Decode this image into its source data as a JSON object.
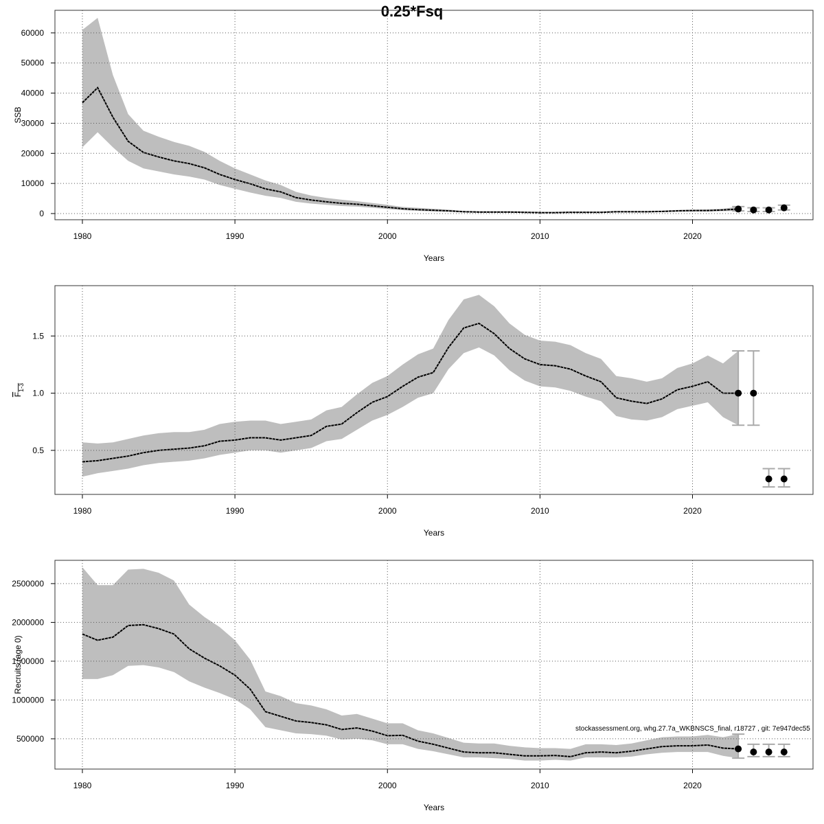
{
  "title": "0.25*Fsq",
  "footnote": "stockassessment.org, whg.27.7a_WKBNSCS_final, r18727 , git: 7e947dec55",
  "chart_data": [
    {
      "type": "line",
      "xlabel": "Years",
      "ylabel": "SSB",
      "xlim": [
        1978.2,
        2027.9
      ],
      "xticks": [
        1980,
        1990,
        2000,
        2010,
        2020
      ],
      "ylim": [
        -2050,
        67500
      ],
      "yticks": [
        0,
        10000,
        20000,
        30000,
        40000,
        50000,
        60000
      ],
      "grid": true,
      "x": [
        1980,
        1981,
        1982,
        1983,
        1984,
        1985,
        1986,
        1987,
        1988,
        1989,
        1990,
        1991,
        1992,
        1993,
        1994,
        1995,
        1996,
        1997,
        1998,
        1999,
        2000,
        2001,
        2002,
        2003,
        2004,
        2005,
        2006,
        2007,
        2008,
        2009,
        2010,
        2011,
        2012,
        2013,
        2014,
        2015,
        2016,
        2017,
        2018,
        2019,
        2020,
        2021,
        2022,
        2023
      ],
      "values": [
        36800,
        41800,
        32000,
        24000,
        20300,
        18800,
        17500,
        16600,
        15200,
        13000,
        11300,
        9900,
        8200,
        7200,
        5300,
        4500,
        3900,
        3400,
        3100,
        2600,
        2100,
        1600,
        1300,
        1100,
        900,
        600,
        500,
        500,
        500,
        400,
        300,
        300,
        400,
        400,
        400,
        600,
        600,
        600,
        700,
        900,
        1000,
        1000,
        1200,
        1500
      ],
      "upper": [
        61000,
        65000,
        46000,
        33000,
        27500,
        25500,
        23800,
        22500,
        20500,
        17500,
        15000,
        13000,
        11000,
        9500,
        7200,
        6000,
        5200,
        4600,
        4100,
        3500,
        2900,
        2200,
        1900,
        1600,
        1300,
        900,
        800,
        800,
        800,
        700,
        600,
        600,
        700,
        700,
        700,
        900,
        900,
        900,
        1000,
        1200,
        1300,
        1400,
        1600,
        2300
      ],
      "lower": [
        22000,
        27000,
        22000,
        17500,
        15000,
        14000,
        13000,
        12300,
        11300,
        9500,
        8200,
        7000,
        5900,
        5200,
        3900,
        3300,
        2900,
        2500,
        2300,
        1900,
        1500,
        1100,
        900,
        700,
        600,
        400,
        300,
        300,
        300,
        200,
        200,
        200,
        200,
        200,
        300,
        400,
        400,
        400,
        500,
        600,
        700,
        700,
        800,
        900
      ],
      "band_color": "#bebebe",
      "line_color": "#000000",
      "forecast": {
        "x": [
          2023,
          2024,
          2025,
          2026
        ],
        "values": [
          1500,
          1200,
          1200,
          1900
        ],
        "lower": [
          900,
          700,
          700,
          1200
        ],
        "upper": [
          2300,
          1900,
          1900,
          2800
        ]
      }
    },
    {
      "type": "line",
      "xlabel": "Years",
      "ylabel": "F",
      "ylabel_sub": "1-3",
      "xlim": [
        1978.2,
        2027.9
      ],
      "xticks": [
        1980,
        1990,
        2000,
        2010,
        2020
      ],
      "ylim": [
        0.115,
        1.94
      ],
      "yticks": [
        0.5,
        {
          "value": 1,
          "label": "1.0"
        },
        1.5
      ],
      "grid": true,
      "x": [
        1980,
        1981,
        1982,
        1983,
        1984,
        1985,
        1986,
        1987,
        1988,
        1989,
        1990,
        1991,
        1992,
        1993,
        1994,
        1995,
        1996,
        1997,
        1998,
        1999,
        2000,
        2001,
        2002,
        2003,
        2004,
        2005,
        2006,
        2007,
        2008,
        2009,
        2010,
        2011,
        2012,
        2013,
        2014,
        2015,
        2016,
        2017,
        2018,
        2019,
        2020,
        2021,
        2022,
        2023
      ],
      "values": [
        0.4,
        0.41,
        0.43,
        0.45,
        0.48,
        0.5,
        0.51,
        0.52,
        0.54,
        0.58,
        0.59,
        0.61,
        0.61,
        0.59,
        0.61,
        0.63,
        0.71,
        0.73,
        0.83,
        0.92,
        0.97,
        1.06,
        1.14,
        1.18,
        1.4,
        1.57,
        1.61,
        1.52,
        1.39,
        1.3,
        1.25,
        1.24,
        1.21,
        1.15,
        1.1,
        0.96,
        0.93,
        0.91,
        0.95,
        1.03,
        1.06,
        1.1,
        1.0,
        1.0
      ],
      "upper": [
        0.57,
        0.56,
        0.57,
        0.6,
        0.63,
        0.65,
        0.66,
        0.66,
        0.68,
        0.73,
        0.75,
        0.76,
        0.76,
        0.73,
        0.75,
        0.77,
        0.85,
        0.88,
        0.99,
        1.09,
        1.15,
        1.25,
        1.34,
        1.39,
        1.64,
        1.82,
        1.86,
        1.76,
        1.61,
        1.51,
        1.46,
        1.45,
        1.42,
        1.35,
        1.3,
        1.15,
        1.13,
        1.1,
        1.13,
        1.22,
        1.26,
        1.33,
        1.26,
        1.37
      ],
      "lower": [
        0.27,
        0.3,
        0.32,
        0.34,
        0.37,
        0.39,
        0.4,
        0.41,
        0.43,
        0.46,
        0.48,
        0.5,
        0.5,
        0.48,
        0.5,
        0.52,
        0.58,
        0.6,
        0.68,
        0.76,
        0.81,
        0.88,
        0.96,
        1.0,
        1.21,
        1.35,
        1.4,
        1.33,
        1.2,
        1.11,
        1.06,
        1.05,
        1.02,
        0.97,
        0.93,
        0.8,
        0.77,
        0.76,
        0.79,
        0.86,
        0.89,
        0.92,
        0.79,
        0.72
      ],
      "band_color": "#bebebe",
      "line_color": "#000000",
      "forecast": {
        "x": [
          2023,
          2024,
          2025,
          2026
        ],
        "values": [
          1.0,
          1.0,
          0.25,
          0.25
        ],
        "lower": [
          0.72,
          0.72,
          0.18,
          0.18
        ],
        "upper": [
          1.37,
          1.37,
          0.34,
          0.34
        ]
      }
    },
    {
      "type": "line",
      "xlabel": "Years",
      "ylabel": "Recruits (age 0)",
      "xlim": [
        1978.2,
        2027.9
      ],
      "xticks": [
        1980,
        1990,
        2000,
        2010,
        2020
      ],
      "ylim": [
        110000,
        2800000
      ],
      "yticks": [
        500000,
        1000000,
        1500000,
        2000000,
        2500000
      ],
      "grid": true,
      "x": [
        1980,
        1981,
        1982,
        1983,
        1984,
        1985,
        1986,
        1987,
        1988,
        1989,
        1990,
        1991,
        1992,
        1993,
        1994,
        1995,
        1996,
        1997,
        1998,
        1999,
        2000,
        2001,
        2002,
        2003,
        2004,
        2005,
        2006,
        2007,
        2008,
        2009,
        2010,
        2011,
        2012,
        2013,
        2014,
        2015,
        2016,
        2017,
        2018,
        2019,
        2020,
        2021,
        2022,
        2023
      ],
      "values": [
        1850000,
        1770000,
        1810000,
        1960000,
        1970000,
        1920000,
        1850000,
        1660000,
        1540000,
        1440000,
        1320000,
        1140000,
        850000,
        790000,
        730000,
        710000,
        680000,
        620000,
        640000,
        600000,
        540000,
        545000,
        470000,
        430000,
        380000,
        330000,
        320000,
        320000,
        300000,
        280000,
        280000,
        285000,
        270000,
        320000,
        330000,
        320000,
        340000,
        370000,
        400000,
        410000,
        410000,
        420000,
        380000,
        370000
      ],
      "upper": [
        2710000,
        2480000,
        2480000,
        2680000,
        2690000,
        2640000,
        2540000,
        2230000,
        2070000,
        1940000,
        1770000,
        1520000,
        1110000,
        1050000,
        960000,
        930000,
        880000,
        800000,
        820000,
        760000,
        700000,
        700000,
        610000,
        570000,
        510000,
        450000,
        440000,
        440000,
        410000,
        390000,
        380000,
        380000,
        370000,
        430000,
        430000,
        420000,
        440000,
        480000,
        520000,
        530000,
        530000,
        550000,
        520000,
        560000
      ],
      "lower": [
        1270000,
        1270000,
        1320000,
        1440000,
        1450000,
        1420000,
        1360000,
        1240000,
        1160000,
        1090000,
        1010000,
        880000,
        650000,
        610000,
        570000,
        560000,
        540000,
        490000,
        500000,
        480000,
        430000,
        430000,
        370000,
        340000,
        300000,
        260000,
        260000,
        250000,
        240000,
        220000,
        220000,
        230000,
        220000,
        260000,
        260000,
        260000,
        270000,
        300000,
        320000,
        330000,
        330000,
        330000,
        280000,
        250000
      ],
      "band_color": "#bebebe",
      "line_color": "#000000",
      "forecast": {
        "x": [
          2023,
          2024,
          2025,
          2026
        ],
        "values": [
          370000,
          330000,
          330000,
          330000
        ],
        "lower": [
          250000,
          270000,
          270000,
          270000
        ],
        "upper": [
          560000,
          430000,
          430000,
          430000
        ]
      }
    }
  ]
}
